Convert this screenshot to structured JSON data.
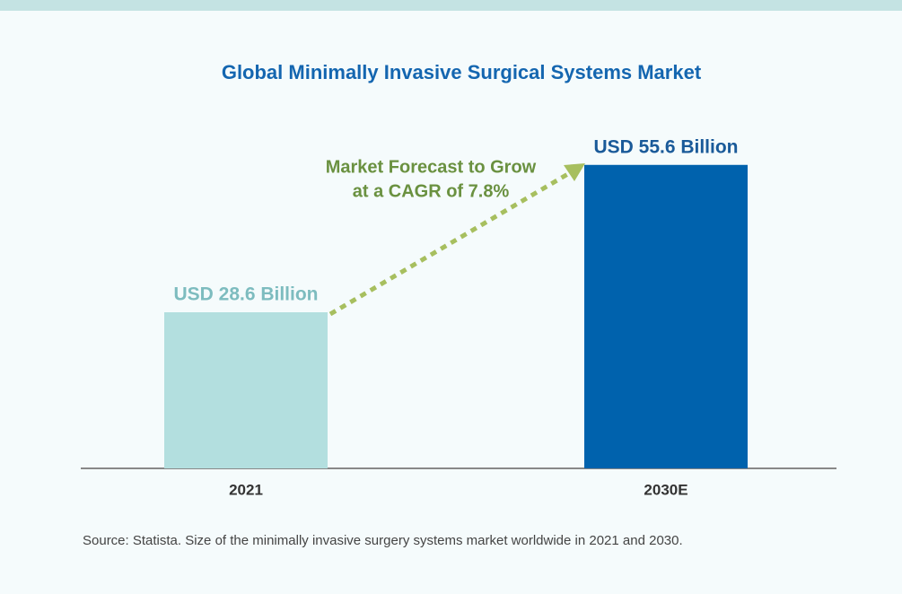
{
  "chart_data": {
    "type": "bar",
    "title": "Global Minimally Invasive Surgical Systems Market",
    "categories": [
      "2021",
      "2030E"
    ],
    "values": [
      28.6,
      55.6
    ],
    "value_labels": [
      "USD 28.6 Billion",
      "USD 55.6 Billion"
    ],
    "colors": [
      "#b3dfdf",
      "#0062ad"
    ],
    "label_colors": [
      "#7dbcbf",
      "#1a5a99"
    ],
    "ylim": [
      0,
      60
    ],
    "annotation": [
      "Market Forecast to Grow",
      "at a CAGR of 7.8%"
    ],
    "source": "Source: Statista. Size of the minimally invasive surgery systems market worldwide in 2021 and 2030."
  }
}
